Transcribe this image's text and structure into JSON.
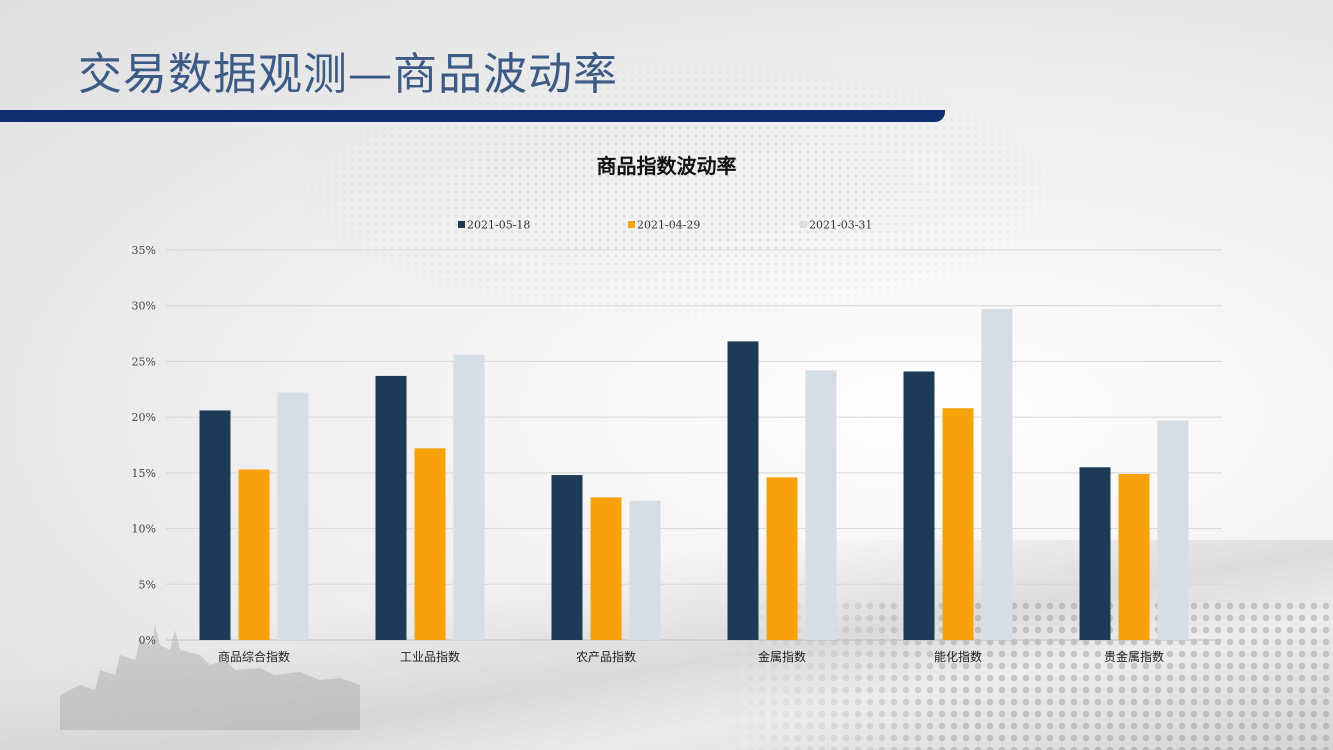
{
  "slide_title": "交易数据观测—商品波动率",
  "colors": {
    "title_text": "#3b5a86",
    "title_bar": "#0f2f6e",
    "gridline": "#d6d6d6",
    "axis_text": "#444444"
  },
  "chart_data": {
    "type": "bar",
    "title": "商品指数波动率",
    "categories": [
      "商品综合指数",
      "工业品指数",
      "农产品指数",
      "金属指数",
      "能化指数",
      "贵金属指数"
    ],
    "series": [
      {
        "name": "2021-05-18",
        "color": "#1f3a56",
        "values": [
          20.6,
          23.7,
          14.8,
          26.8,
          24.1,
          15.5
        ]
      },
      {
        "name": "2021-04-29",
        "color": "#f7a20a",
        "values": [
          15.3,
          17.2,
          12.8,
          14.6,
          20.8,
          14.9
        ]
      },
      {
        "name": "2021-03-31",
        "color": "#d5dde6",
        "values": [
          22.2,
          25.6,
          12.5,
          24.2,
          29.7,
          19.7
        ]
      }
    ],
    "ylim": [
      0,
      35
    ],
    "yticks": [
      0,
      5,
      10,
      15,
      20,
      25,
      30,
      35
    ],
    "ytick_labels": [
      "0%",
      "5%",
      "10%",
      "15%",
      "20%",
      "25%",
      "30%",
      "35%"
    ],
    "grid": true,
    "legend": "top-center"
  }
}
